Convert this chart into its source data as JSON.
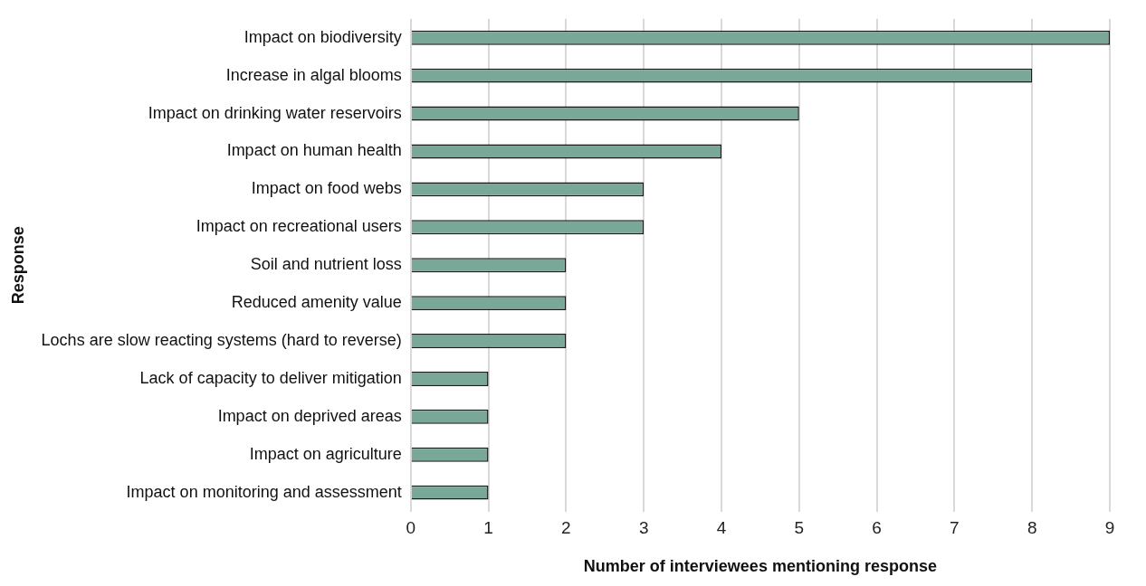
{
  "chart_data": {
    "type": "bar",
    "orientation": "horizontal",
    "xlabel": "Number of interviewees mentioning response",
    "ylabel": "Response",
    "categories": [
      "Impact on biodiversity",
      "Increase in algal blooms",
      "Impact on drinking water reservoirs",
      "Impact on human health",
      "Impact on food webs",
      "Impact on recreational users",
      "Soil and nutrient loss",
      "Reduced amenity value",
      "Lochs are slow reacting systems (hard to reverse)",
      "Lack of capacity to deliver mitigation",
      "Impact on deprived areas",
      "Impact on agriculture",
      "Impact on monitoring and assessment"
    ],
    "values": [
      9,
      8,
      5,
      4,
      3,
      3,
      2,
      2,
      2,
      1,
      1,
      1,
      1
    ],
    "color": "#7aa898",
    "xlim": [
      0,
      9
    ],
    "xticks": [
      0,
      1,
      2,
      3,
      4,
      5,
      6,
      7,
      8,
      9
    ],
    "grid": "x",
    "legend": false
  }
}
